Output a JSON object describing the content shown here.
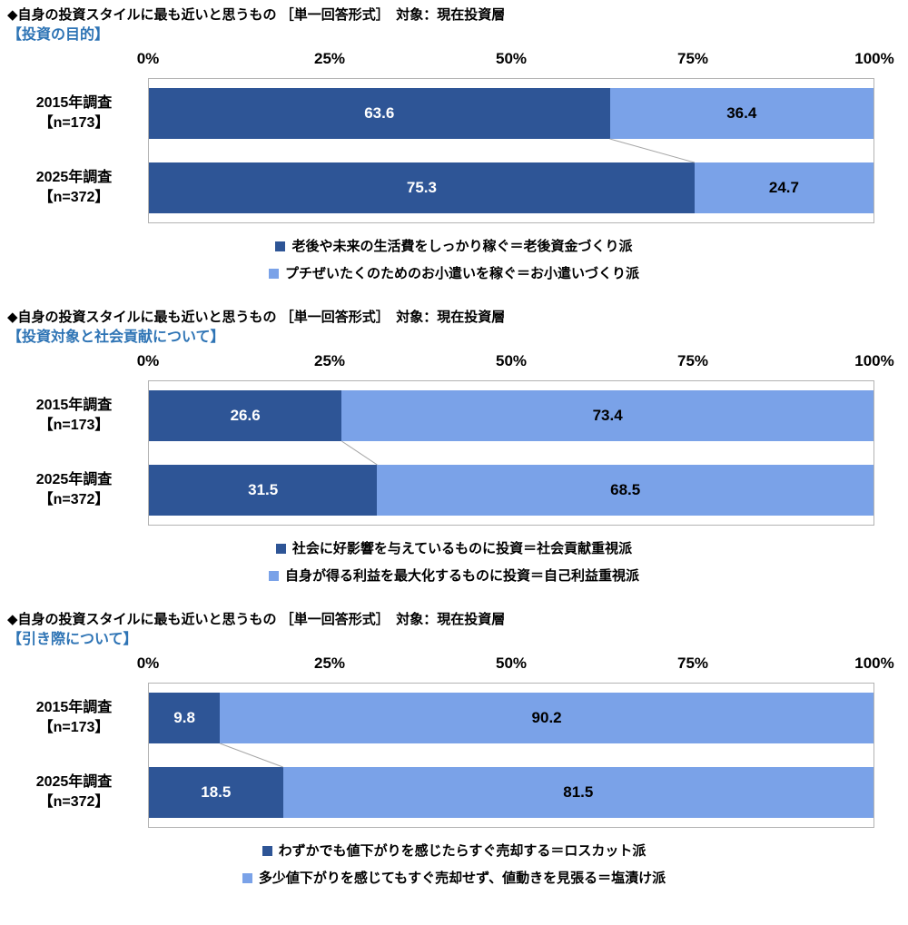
{
  "colors": {
    "series1": "#2e5596",
    "series2": "#7aa2e8",
    "subtitle_blue": "#2e74b5",
    "plot_border": "#b3b3b3"
  },
  "chart_data": [
    {
      "type": "bar",
      "orientation": "horizontal-stacked",
      "title": "◆自身の投資スタイルに最も近いと思うもの ［単一回答形式］　対象：現在投資層",
      "subtitle": "【投資の目的】",
      "axis_ticks": [
        "0%",
        "25%",
        "50%",
        "75%",
        "100%"
      ],
      "xlim": [
        0,
        100
      ],
      "categories": [
        "2015年調査【n=173】",
        "2025年調査【n=372】"
      ],
      "category_lines": [
        [
          "2015年調査",
          "【n=173】"
        ],
        [
          "2025年調査",
          "【n=372】"
        ]
      ],
      "series": [
        {
          "name": "老後や未来の生活費をしっかり稼ぐ＝老後資金づくり派",
          "values": [
            63.6,
            75.3
          ],
          "color": "#2e5596"
        },
        {
          "name": "プチぜいたくのためのお小遣いを稼ぐ＝お小遣いづくり派",
          "values": [
            36.4,
            24.7
          ],
          "color": "#7aa2e8"
        }
      ],
      "legend_position": "bottom"
    },
    {
      "type": "bar",
      "orientation": "horizontal-stacked",
      "title": "◆自身の投資スタイルに最も近いと思うもの ［単一回答形式］　対象：現在投資層",
      "subtitle": "【投資対象と社会貢献について】",
      "axis_ticks": [
        "0%",
        "25%",
        "50%",
        "75%",
        "100%"
      ],
      "xlim": [
        0,
        100
      ],
      "categories": [
        "2015年調査【n=173】",
        "2025年調査【n=372】"
      ],
      "category_lines": [
        [
          "2015年調査",
          "【n=173】"
        ],
        [
          "2025年調査",
          "【n=372】"
        ]
      ],
      "series": [
        {
          "name": "社会に好影響を与えているものに投資＝社会貢献重視派",
          "values": [
            26.6,
            31.5
          ],
          "color": "#2e5596"
        },
        {
          "name": "自身が得る利益を最大化するものに投資＝自己利益重視派",
          "values": [
            73.4,
            68.5
          ],
          "color": "#7aa2e8"
        }
      ],
      "legend_position": "bottom"
    },
    {
      "type": "bar",
      "orientation": "horizontal-stacked",
      "title": "◆自身の投資スタイルに最も近いと思うもの ［単一回答形式］　対象：現在投資層",
      "subtitle": "【引き際について】",
      "axis_ticks": [
        "0%",
        "25%",
        "50%",
        "75%",
        "100%"
      ],
      "xlim": [
        0,
        100
      ],
      "categories": [
        "2015年調査【n=173】",
        "2025年調査【n=372】"
      ],
      "category_lines": [
        [
          "2015年調査",
          "【n=173】"
        ],
        [
          "2025年調査",
          "【n=372】"
        ]
      ],
      "series": [
        {
          "name": "わずかでも値下がりを感じたらすぐ売却する＝ロスカット派",
          "values": [
            9.8,
            18.5
          ],
          "color": "#2e5596"
        },
        {
          "name": "多少値下がりを感じてもすぐ売却せず、値動きを見張る＝塩漬け派",
          "values": [
            90.2,
            81.5
          ],
          "color": "#7aa2e8"
        }
      ],
      "legend_position": "bottom"
    }
  ]
}
